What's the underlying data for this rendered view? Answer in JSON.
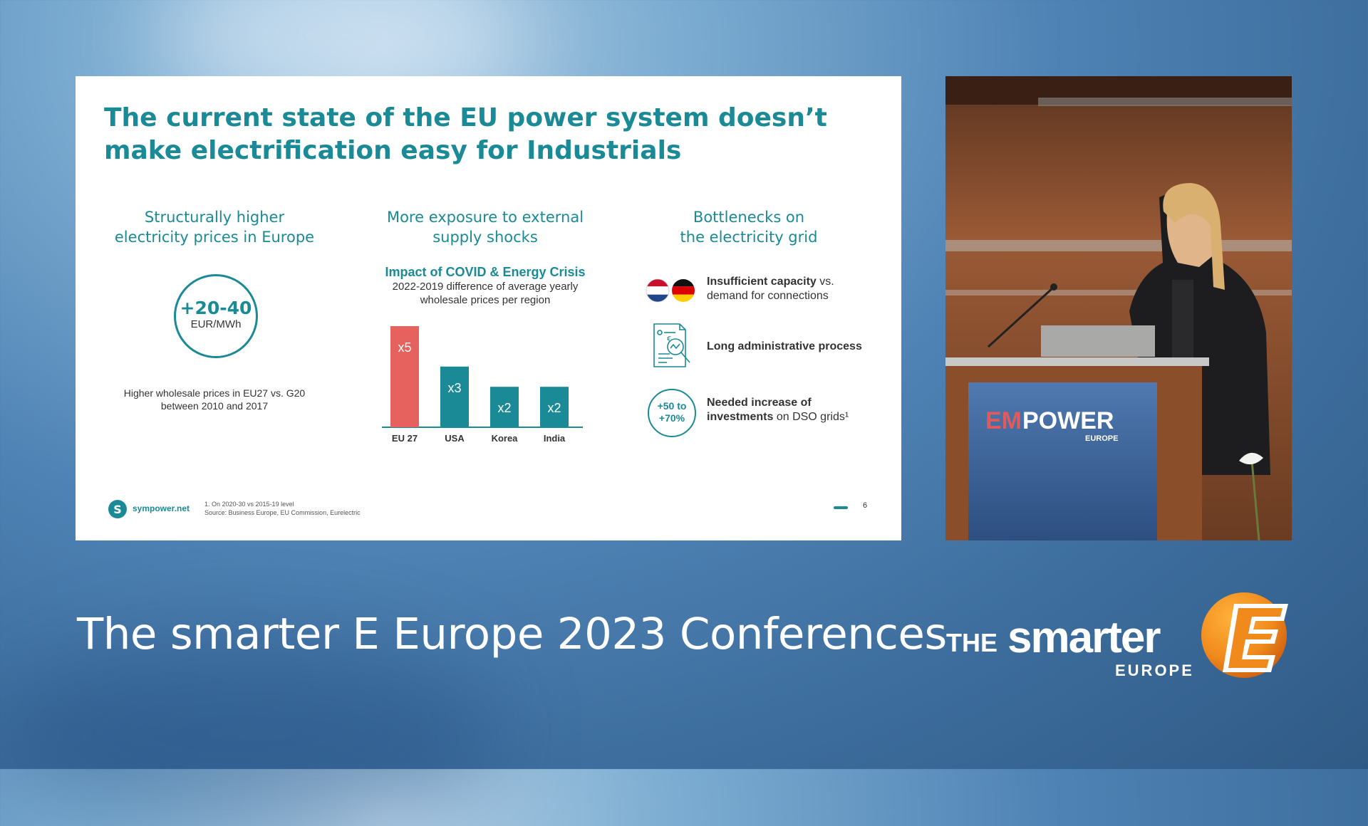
{
  "slide": {
    "title": "The current state of the EU power system doesn’t make electrification easy for Industrials",
    "columns": [
      {
        "heading_lines": [
          "Structurally higher",
          "electricity prices in Europe"
        ]
      },
      {
        "heading_lines": [
          "More exposure to external",
          "supply shocks"
        ]
      },
      {
        "heading_lines": [
          "Bottlenecks on",
          "the electricity grid"
        ]
      }
    ],
    "price_badge": {
      "value": "+20-40",
      "unit": "EUR/MWh"
    },
    "price_caption_lines": [
      "Higher wholesale prices in EU27 vs. G20",
      "between 2010 and 2017"
    ],
    "chart_title": "Impact of COVID & Energy Crisis",
    "chart_subtitle_lines": [
      "2022-2019 difference of average yearly",
      "wholesale prices per region"
    ],
    "bottlenecks": [
      {
        "bold": "Insufficient capacity",
        "rest": " vs.",
        "line2": "demand for connections"
      },
      {
        "bold": "Long administrative process",
        "rest": "",
        "line2": ""
      },
      {
        "bold": "Needed increase of",
        "rest": "",
        "line2_bold": "investments",
        "line2": " on DSO grids¹"
      }
    ],
    "invest_badge_lines": [
      "+50 to",
      "+70%"
    ],
    "footer": {
      "logo_icon": "sympower-logo-icon",
      "domain": "sympower.net",
      "footnote_lines": [
        "1. On 2020-30 vs 2015-19 level",
        "Source: Business Europe, EU Commission, Eurelectric"
      ],
      "page_number": "6"
    }
  },
  "chart_data": {
    "type": "bar",
    "title": "Impact of COVID & Energy Crisis",
    "categories": [
      "EU 27",
      "USA",
      "Korea",
      "India"
    ],
    "values": [
      5,
      3,
      2,
      2
    ],
    "data_labels": [
      "x5",
      "x3",
      "x2",
      "x2"
    ],
    "colors": [
      "#e5625f",
      "#1a8a96",
      "#1a8a96",
      "#1a8a96"
    ],
    "ylim": [
      0,
      5
    ],
    "grid": false
  },
  "video": {
    "podium_brand": {
      "em": "EM",
      "power": "POWER",
      "sub": "EUROPE"
    }
  },
  "banner": {
    "text": "The smarter E Europe 2023 Conferences"
  },
  "brand": {
    "the": "THE",
    "smarter": "smarter",
    "europe": "EUROPE",
    "icon": "smarter-e-logo-icon"
  },
  "colors": {
    "teal": "#1a8a96",
    "coral": "#e5625f",
    "orange": "#f08a1c"
  }
}
